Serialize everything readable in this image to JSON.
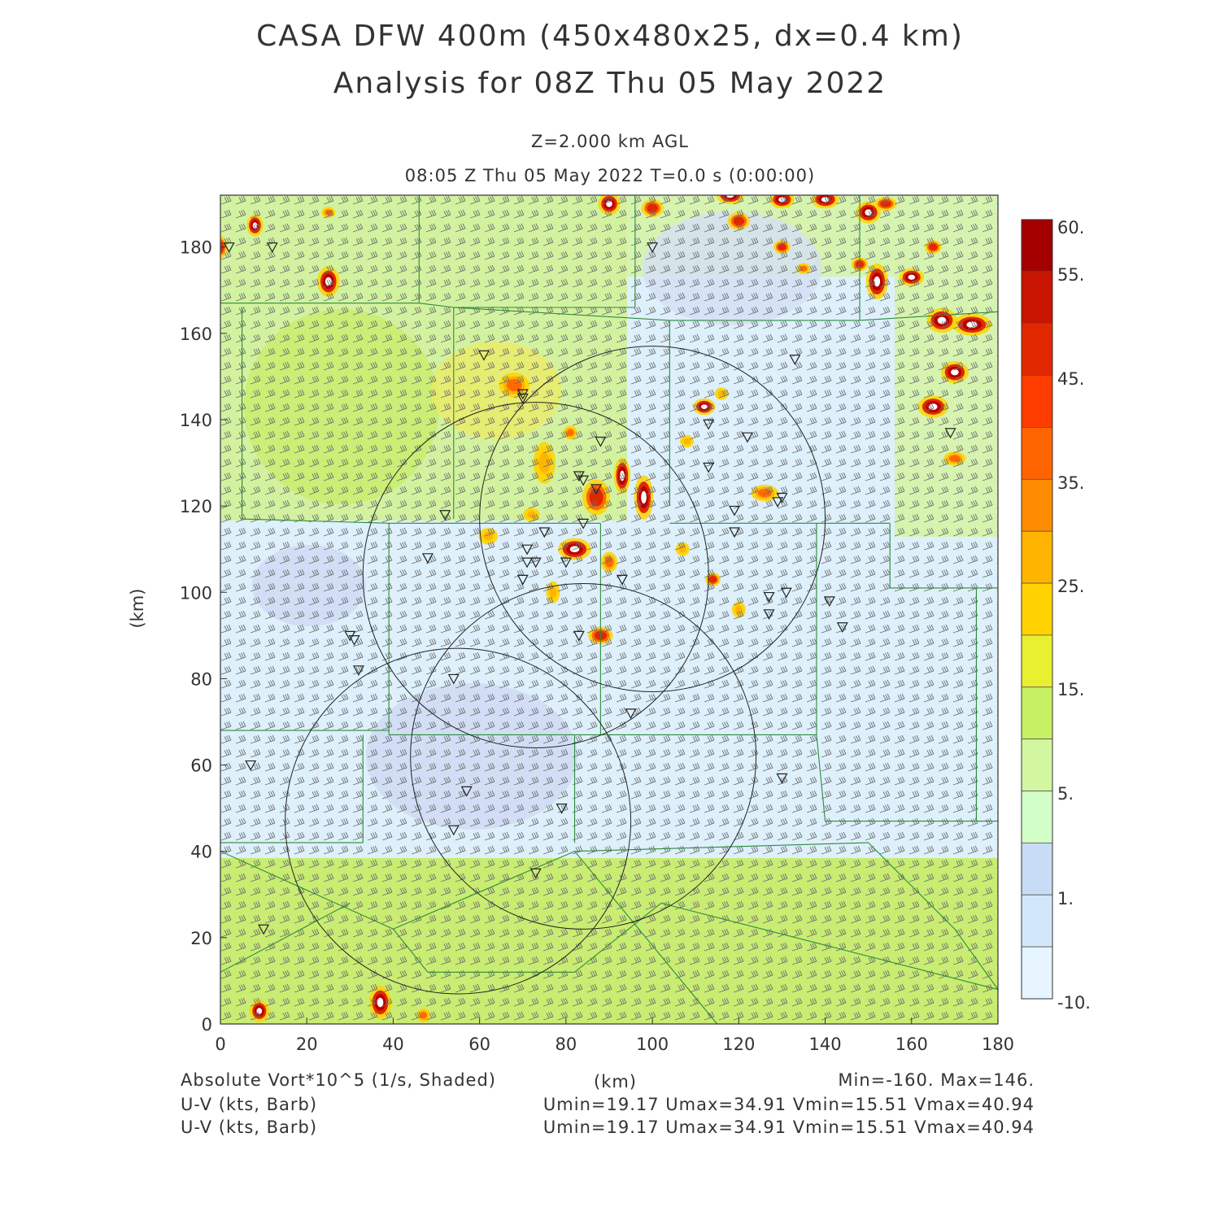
{
  "header": {
    "title_line1": "CASA DFW 400m (450x480x25, dx=0.4 km)",
    "title_line2": "Analysis for 08Z Thu 05 May 2022",
    "level": "Z=2.000 km AGL",
    "valid_time": "08:05 Z Thu 05 May 2022    T=0.0 s (0:00:00)"
  },
  "axes": {
    "x_ticks": [
      "0",
      "20",
      "40",
      "60",
      "80",
      "100",
      "120",
      "140",
      "160",
      "180"
    ],
    "y_ticks": [
      "0",
      "20",
      "40",
      "60",
      "80",
      "100",
      "120",
      "140",
      "160",
      "180"
    ],
    "x_unit": "(km)",
    "y_unit": "(km)",
    "xlim": [
      0,
      180
    ],
    "ylim": [
      0,
      192
    ]
  },
  "colorbar": {
    "labels": [
      "60.",
      "55.",
      "45.",
      "35.",
      "25.",
      "15.",
      "5.",
      "1.",
      "-10."
    ],
    "colors": [
      "#a50000",
      "#c81400",
      "#e12800",
      "#ff3c00",
      "#ff6400",
      "#ff8c00",
      "#ffb400",
      "#ffd200",
      "#e8f030",
      "#c8f064",
      "#d2f7a0",
      "#d2ffc8",
      "#c8dcf5",
      "#d2e8fa",
      "#e6f5ff"
    ]
  },
  "footer": {
    "field_label": "Absolute Vort*10^5 (1/s, Shaded)",
    "x_unit_label": "(km)",
    "minmax": "Min=-160. Max=146.",
    "barb_label_1": "U-V (kts, Barb)",
    "barb_label_2": "U-V (kts, Barb)",
    "wind_stats_1": "Umin=19.17  Umax=34.91  Vmin=15.51  Vmax=40.94",
    "wind_stats_2": "Umin=19.17  Umax=34.91  Vmin=15.51  Vmax=40.94"
  },
  "map": {
    "radar_markers": [
      [
        2,
        180
      ],
      [
        12,
        180
      ],
      [
        100,
        180
      ],
      [
        61,
        155
      ],
      [
        70,
        146
      ],
      [
        70,
        145
      ],
      [
        133,
        154
      ],
      [
        113,
        139
      ],
      [
        88,
        135
      ],
      [
        122,
        136
      ],
      [
        169,
        137
      ],
      [
        113,
        129
      ],
      [
        83,
        127
      ],
      [
        84,
        126
      ],
      [
        87,
        124
      ],
      [
        130,
        122
      ],
      [
        129,
        121
      ],
      [
        119,
        119
      ],
      [
        52,
        118
      ],
      [
        84,
        116
      ],
      [
        119,
        114
      ],
      [
        75,
        114
      ],
      [
        71,
        110
      ],
      [
        48,
        108
      ],
      [
        71,
        107
      ],
      [
        73,
        107
      ],
      [
        80,
        107
      ],
      [
        93,
        103
      ],
      [
        70,
        103
      ],
      [
        131,
        100
      ],
      [
        127,
        99
      ],
      [
        141,
        98
      ],
      [
        127,
        95
      ],
      [
        30,
        90
      ],
      [
        31,
        89
      ],
      [
        144,
        92
      ],
      [
        83,
        90
      ],
      [
        32,
        82
      ],
      [
        54,
        80
      ],
      [
        95,
        72
      ],
      [
        7,
        60
      ],
      [
        130,
        57
      ],
      [
        57,
        54
      ],
      [
        79,
        50
      ],
      [
        54,
        45
      ],
      [
        73,
        35
      ],
      [
        10,
        22
      ]
    ],
    "range_rings": [
      [
        100,
        117,
        40
      ],
      [
        73,
        104,
        40
      ],
      [
        84,
        62,
        40
      ],
      [
        55,
        47,
        40
      ]
    ],
    "county_lines": [
      [
        [
          0,
          167
        ],
        [
          46,
          167
        ]
      ],
      [
        [
          46,
          167
        ],
        [
          46,
          192
        ]
      ],
      [
        [
          46,
          167
        ],
        [
          54,
          166
        ]
      ],
      [
        [
          54,
          166
        ],
        [
          54,
          117
        ]
      ],
      [
        [
          5,
          166
        ],
        [
          5,
          117
        ]
      ],
      [
        [
          54,
          166
        ],
        [
          96,
          166
        ]
      ],
      [
        [
          96,
          166
        ],
        [
          96,
          192
        ]
      ],
      [
        [
          54,
          166
        ],
        [
          104,
          163
        ]
      ],
      [
        [
          104,
          163
        ],
        [
          104,
          120
        ]
      ],
      [
        [
          104,
          163
        ],
        [
          148,
          163
        ]
      ],
      [
        [
          148,
          163
        ],
        [
          148,
          192
        ]
      ],
      [
        [
          148,
          163
        ],
        [
          180,
          165
        ]
      ],
      [
        [
          5,
          117
        ],
        [
          39,
          116
        ]
      ],
      [
        [
          39,
          116
        ],
        [
          39,
          67
        ]
      ],
      [
        [
          39,
          116
        ],
        [
          88,
          116
        ]
      ],
      [
        [
          88,
          116
        ],
        [
          88,
          67
        ]
      ],
      [
        [
          104,
          116
        ],
        [
          138,
          116
        ]
      ],
      [
        [
          138,
          116
        ],
        [
          138,
          67
        ]
      ],
      [
        [
          138,
          116
        ],
        [
          155,
          116
        ]
      ],
      [
        [
          155,
          116
        ],
        [
          155,
          101
        ]
      ],
      [
        [
          155,
          101
        ],
        [
          180,
          101
        ]
      ],
      [
        [
          0,
          68
        ],
        [
          39,
          68
        ]
      ],
      [
        [
          39,
          67
        ],
        [
          138,
          67
        ]
      ],
      [
        [
          33,
          67
        ],
        [
          33,
          42
        ]
      ],
      [
        [
          0,
          42
        ],
        [
          33,
          42
        ]
      ],
      [
        [
          82,
          67
        ],
        [
          82,
          42
        ]
      ],
      [
        [
          138,
          67
        ],
        [
          140,
          47
        ]
      ],
      [
        [
          140,
          47
        ],
        [
          175,
          47
        ]
      ],
      [
        [
          175,
          47
        ],
        [
          175,
          101
        ]
      ],
      [
        [
          175,
          47
        ],
        [
          180,
          47
        ]
      ],
      [
        [
          0,
          40
        ],
        [
          40,
          22
        ]
      ],
      [
        [
          40,
          22
        ],
        [
          82,
          40
        ]
      ],
      [
        [
          40,
          22
        ],
        [
          48,
          12
        ]
      ],
      [
        [
          48,
          12
        ],
        [
          82,
          12
        ]
      ],
      [
        [
          82,
          40
        ],
        [
          115,
          0
        ]
      ],
      [
        [
          82,
          40
        ],
        [
          150,
          42
        ]
      ],
      [
        [
          150,
          42
        ],
        [
          170,
          22
        ]
      ],
      [
        [
          170,
          22
        ],
        [
          180,
          8
        ]
      ],
      [
        [
          0,
          12
        ],
        [
          30,
          28
        ]
      ],
      [
        [
          82,
          12
        ],
        [
          102,
          28
        ]
      ],
      [
        [
          102,
          28
        ],
        [
          180,
          8
        ]
      ]
    ],
    "cells": [
      [
        68,
        148,
        2.2,
        1.8,
        30
      ],
      [
        75,
        130,
        1.6,
        3.0,
        25
      ],
      [
        82,
        110,
        2.4,
        1.6,
        55
      ],
      [
        87,
        122,
        2.0,
        2.6,
        40
      ],
      [
        93,
        127,
        1.2,
        2.6,
        55
      ],
      [
        98,
        122,
        1.4,
        3.2,
        55
      ],
      [
        88,
        90,
        1.8,
        1.3,
        40
      ],
      [
        112,
        143,
        1.6,
        1.2,
        55
      ],
      [
        114,
        103,
        1.1,
        1.0,
        40
      ],
      [
        126,
        123,
        2.0,
        1.2,
        30
      ],
      [
        81,
        137,
        1.0,
        1.0,
        30
      ],
      [
        90,
        107,
        1.2,
        1.5,
        30
      ],
      [
        77,
        100,
        1.0,
        1.6,
        25
      ],
      [
        62,
        113,
        1.4,
        1.2,
        25
      ],
      [
        72,
        118,
        1.2,
        1.0,
        25
      ],
      [
        120,
        96,
        1.0,
        1.2,
        20
      ],
      [
        107,
        110,
        1.0,
        1.0,
        20
      ],
      [
        150,
        188,
        1.8,
        1.6,
        55
      ],
      [
        165,
        180,
        1.2,
        1.0,
        40
      ],
      [
        160,
        173,
        1.8,
        1.3,
        55
      ],
      [
        152,
        172,
        1.6,
        2.6,
        55
      ],
      [
        167,
        163,
        2.2,
        1.8,
        55
      ],
      [
        174,
        162,
        2.8,
        1.6,
        55
      ],
      [
        170,
        151,
        2.0,
        1.6,
        55
      ],
      [
        165,
        143,
        2.2,
        1.6,
        55
      ],
      [
        170,
        131,
        1.6,
        1.0,
        30
      ],
      [
        148,
        176,
        1.2,
        1.0,
        40
      ],
      [
        130,
        180,
        1.2,
        1.0,
        40
      ],
      [
        135,
        175,
        1.0,
        0.8,
        30
      ],
      [
        120,
        186,
        1.6,
        1.3,
        40
      ],
      [
        100,
        189,
        1.6,
        1.3,
        40
      ],
      [
        118,
        192,
        2.0,
        1.3,
        55
      ],
      [
        130,
        191,
        1.8,
        1.3,
        55
      ],
      [
        140,
        191,
        2.0,
        1.3,
        55
      ],
      [
        154,
        190,
        1.6,
        1.0,
        40
      ],
      [
        90,
        190,
        1.6,
        1.6,
        55
      ],
      [
        8,
        185,
        1.2,
        1.6,
        55
      ],
      [
        25,
        172,
        1.6,
        2.2,
        55
      ],
      [
        25,
        188,
        1.0,
        0.8,
        30
      ],
      [
        0,
        180,
        1.0,
        1.6,
        40
      ],
      [
        37,
        5,
        1.6,
        2.4,
        55
      ],
      [
        9,
        3,
        1.4,
        1.6,
        55
      ],
      [
        47,
        2,
        1.0,
        1.0,
        30
      ],
      [
        108,
        135,
        1.0,
        0.9,
        25
      ],
      [
        116,
        146,
        1.0,
        0.9,
        25
      ]
    ]
  }
}
